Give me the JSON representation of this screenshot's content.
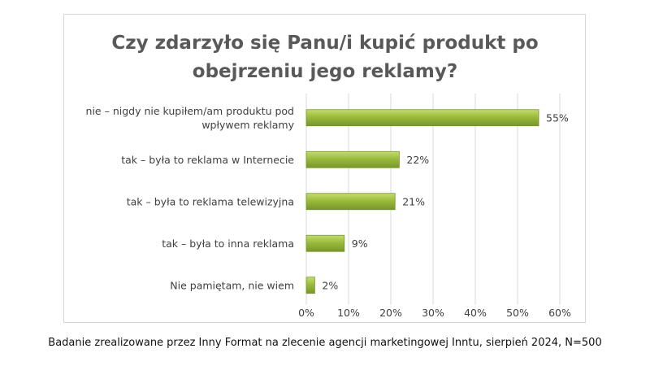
{
  "chart_data": {
    "type": "bar",
    "orientation": "horizontal",
    "title_lines": [
      "Czy zdarzyło się Panu/i kupić produkt po",
      "obejrzeniu jego reklamy?"
    ],
    "categories": [
      [
        "nie – nigdy nie kupiłem/am produktu pod",
        "wpływem reklamy"
      ],
      [
        "tak – była to reklama w Internecie"
      ],
      [
        "tak – była to reklama telewizyjna"
      ],
      [
        "tak – była to inna reklama"
      ],
      [
        "Nie pamiętam, nie wiem"
      ]
    ],
    "values": [
      55,
      22,
      21,
      9,
      2
    ],
    "data_labels": [
      "55%",
      "22%",
      "21%",
      "9%",
      "2%"
    ],
    "xlim": [
      0,
      60
    ],
    "x_ticks": [
      0,
      10,
      20,
      30,
      40,
      50,
      60
    ],
    "x_tick_labels": [
      "0%",
      "10%",
      "20%",
      "30%",
      "40%",
      "50%",
      "60%"
    ],
    "grid": "vertical",
    "legend": "none",
    "bar_color": "#9bbb3c",
    "bar_color_light": "#c4dc6e",
    "bar_color_dark": "#77962a",
    "grid_color": "#d9d9d9"
  },
  "footnote": "Badanie zrealizowane przez Inny Format na zlecenie agencji marketingowej Inntu, sierpień 2024, N=500"
}
